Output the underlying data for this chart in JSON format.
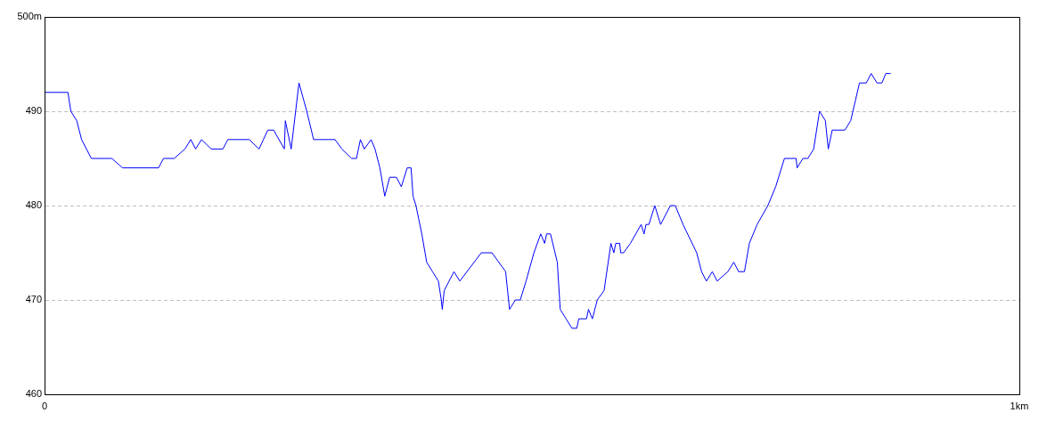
{
  "chart_data": {
    "type": "line",
    "xlim": [
      0,
      1
    ],
    "xticks": [
      {
        "value": 0,
        "label": "0"
      },
      {
        "value": 1,
        "label": "1km"
      }
    ],
    "ylim": [
      460,
      500
    ],
    "yticks": [
      460,
      470,
      480,
      490,
      {
        "value": 500,
        "label": "500m"
      }
    ],
    "grid": "y",
    "legend": false,
    "marker": "none",
    "line_style": "solid",
    "series": [
      {
        "color": "#0000ff",
        "x": [
          0,
          0.024,
          0.027,
          0.033,
          0.038,
          0.048,
          0.069,
          0.08,
          0.117,
          0.122,
          0.133,
          0.144,
          0.15,
          0.155,
          0.161,
          0.171,
          0.183,
          0.188,
          0.21,
          0.22,
          0.229,
          0.235,
          0.246,
          0.247,
          0.253,
          0.261,
          0.269,
          0.276,
          0.298,
          0.305,
          0.315,
          0.32,
          0.324,
          0.328,
          0.335,
          0.339,
          0.344,
          0.349,
          0.354,
          0.361,
          0.366,
          0.372,
          0.376,
          0.378,
          0.381,
          0.387,
          0.392,
          0.398,
          0.404,
          0.407,
          0.408,
          0.41,
          0.42,
          0.426,
          0.448,
          0.459,
          0.473,
          0.477,
          0.483,
          0.488,
          0.494,
          0.502,
          0.509,
          0.513,
          0.515,
          0.519,
          0.526,
          0.529,
          0.535,
          0.541,
          0.546,
          0.548,
          0.556,
          0.558,
          0.562,
          0.567,
          0.574,
          0.581,
          0.584,
          0.586,
          0.59,
          0.591,
          0.594,
          0.601,
          0.612,
          0.615,
          0.617,
          0.62,
          0.626,
          0.632,
          0.642,
          0.647,
          0.655,
          0.669,
          0.674,
          0.679,
          0.685,
          0.69,
          0.701,
          0.707,
          0.712,
          0.718,
          0.723,
          0.731,
          0.742,
          0.75,
          0.759,
          0.771,
          0.772,
          0.778,
          0.783,
          0.789,
          0.795,
          0.801,
          0.804,
          0.808,
          0.821,
          0.827,
          0.836,
          0.843,
          0.848,
          0.854,
          0.859,
          0.863,
          0.868
        ],
        "values": [
          492,
          492,
          490,
          489,
          487,
          485,
          485,
          484,
          484,
          485,
          485,
          486,
          487,
          486,
          487,
          486,
          486,
          487,
          487,
          486,
          488,
          488,
          486,
          489,
          486,
          493,
          490,
          487,
          487,
          486,
          485,
          485,
          487,
          486,
          487,
          486,
          484,
          481,
          483,
          483,
          482,
          484,
          484,
          481,
          480,
          477,
          474,
          473,
          472,
          470,
          469,
          471,
          473,
          472,
          475,
          475,
          473,
          469,
          470,
          470,
          472,
          475,
          477,
          476,
          477,
          477,
          474,
          469,
          468,
          467,
          467,
          468,
          468,
          469,
          468,
          470,
          471,
          476,
          475,
          476,
          476,
          475,
          475,
          476,
          478,
          477,
          478,
          478,
          480,
          478,
          480,
          480,
          478,
          475,
          473,
          472,
          473,
          472,
          473,
          474,
          473,
          473,
          476,
          478,
          480,
          482,
          485,
          485,
          484,
          485,
          485,
          486,
          490,
          489,
          486,
          488,
          488,
          489,
          493,
          493,
          494,
          493,
          493,
          494,
          494
        ]
      }
    ]
  }
}
